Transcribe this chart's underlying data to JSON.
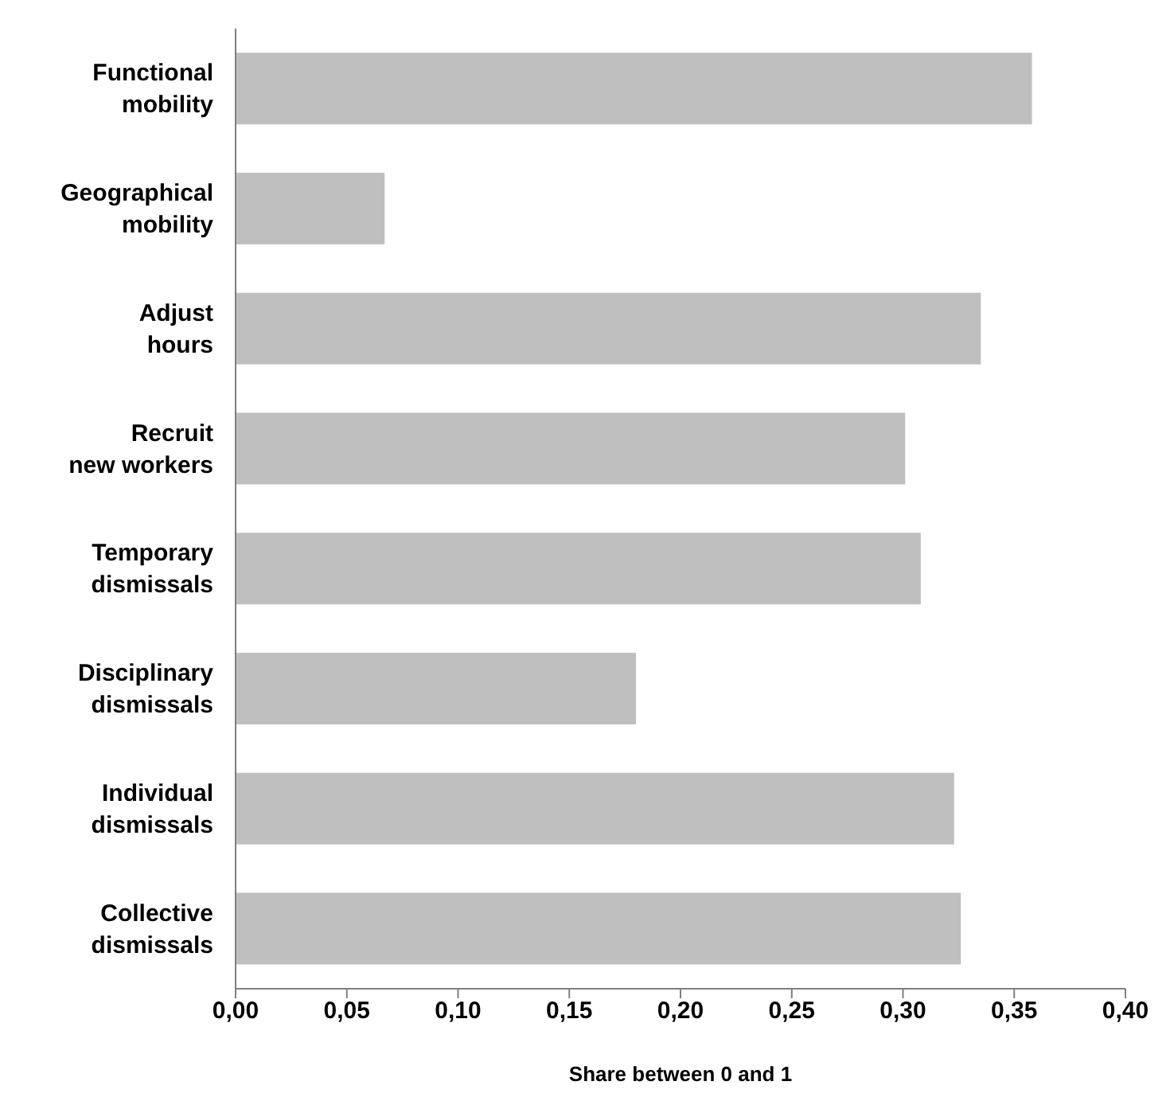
{
  "chart_data": {
    "type": "bar",
    "orientation": "horizontal",
    "xlabel": "Share between 0 and 1",
    "categories": [
      "Functional mobility",
      "Geographical mobility",
      "Adjust hours",
      "Recruit new workers",
      "Temporary dismissals",
      "Disciplinary dismissals",
      "Individual dismissals",
      "Collective dismissals"
    ],
    "values": [
      0.358,
      0.067,
      0.335,
      0.301,
      0.308,
      0.18,
      0.323,
      0.326
    ],
    "color": "#bfbfbf",
    "xlim": [
      0,
      0.4
    ],
    "xticks": [
      {
        "value": 0,
        "label": "0,00"
      },
      {
        "value": 0.05,
        "label": "0,05"
      },
      {
        "value": 0.1,
        "label": "0,10"
      },
      {
        "value": 0.15,
        "label": "0,15"
      },
      {
        "value": 0.2,
        "label": "0,20"
      },
      {
        "value": 0.25,
        "label": "0,25"
      },
      {
        "value": 0.3,
        "label": "0,30"
      },
      {
        "value": 0.35,
        "label": "0,35"
      },
      {
        "value": 0.4,
        "label": "0,40"
      }
    ],
    "grid": false
  }
}
